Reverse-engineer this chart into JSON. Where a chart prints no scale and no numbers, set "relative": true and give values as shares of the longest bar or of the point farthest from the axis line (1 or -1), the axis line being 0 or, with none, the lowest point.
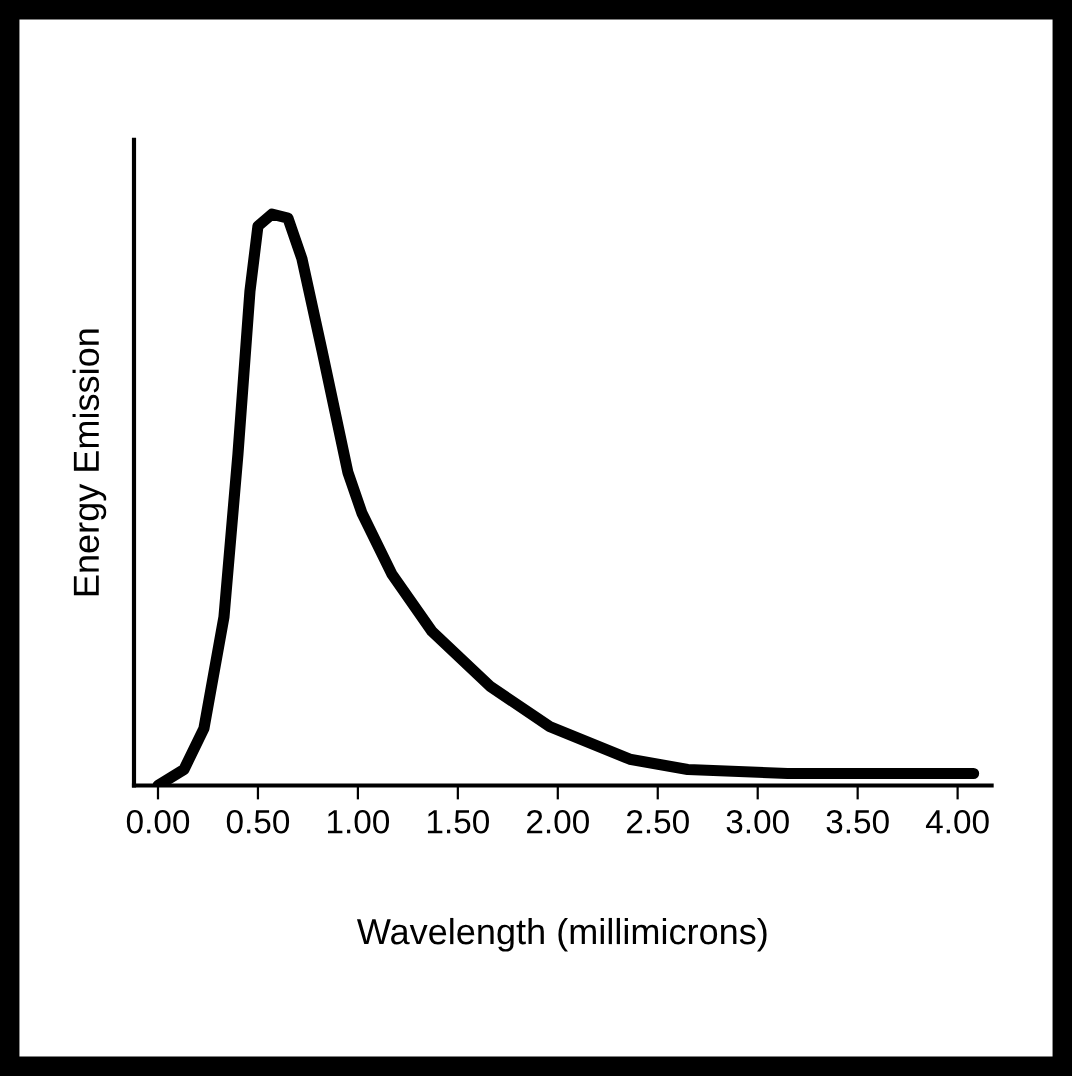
{
  "chart_data": {
    "type": "line",
    "relative": true,
    "xlabel": "Wavelength (millimicrons)",
    "ylabel": "Energy Emission",
    "xlim": [
      -0.12,
      4.17
    ],
    "xticks": [
      {
        "value": 0,
        "label": "0.00"
      },
      {
        "value": 0.5,
        "label": "0.50"
      },
      {
        "value": 1,
        "label": "1.00"
      },
      {
        "value": 1.5,
        "label": "1.50"
      },
      {
        "value": 2,
        "label": "2.00"
      },
      {
        "value": 2.5,
        "label": "2.50"
      },
      {
        "value": 3,
        "label": "3.00"
      },
      {
        "value": 3.5,
        "label": "3.50"
      },
      {
        "value": 4,
        "label": "4.00"
      }
    ],
    "series": [
      {
        "color": "#000000",
        "x": [
          0,
          0.13,
          0.23,
          0.33,
          0.4,
          0.46,
          0.5,
          0.57,
          0.65,
          0.72,
          0.82,
          0.95,
          1.02,
          1.17,
          1.37,
          1.66,
          1.96,
          2.36,
          2.65,
          3.15,
          4.08
        ],
        "values": [
          0,
          0.028,
          0.1,
          0.295,
          0.58,
          0.865,
          0.979,
          1.0,
          0.993,
          0.922,
          0.762,
          0.548,
          0.477,
          0.37,
          0.27,
          0.174,
          0.103,
          0.046,
          0.028,
          0.021,
          0.021
        ]
      }
    ],
    "grid": false,
    "legend": false,
    "marker": "none",
    "line_style": "solid"
  }
}
